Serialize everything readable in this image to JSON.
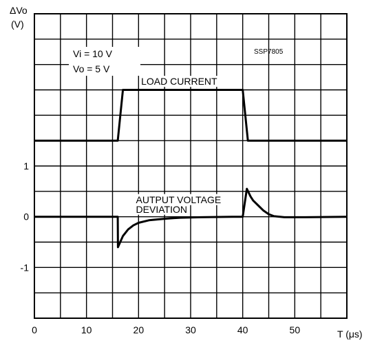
{
  "chart_data": {
    "type": "line",
    "ylabel_lines": [
      "ΔVo",
      "(V)"
    ],
    "xlabel": "T (μs)",
    "part_number": "SSP7805",
    "conditions": [
      "Vi = 10 V",
      "Vo = 5 V"
    ],
    "xlim": [
      0,
      60
    ],
    "ylim": [
      -2,
      4
    ],
    "grid": true,
    "x_ticks": [
      {
        "value": 0,
        "label": "0"
      },
      {
        "value": 10,
        "label": "10"
      },
      {
        "value": 20,
        "label": "20"
      },
      {
        "value": 30,
        "label": "30"
      },
      {
        "value": 40,
        "label": "40"
      },
      {
        "value": 50,
        "label": "50"
      }
    ],
    "y_ticks": [
      {
        "value": 1,
        "label": "1"
      },
      {
        "value": 0,
        "label": "0"
      },
      {
        "value": -1,
        "label": "-1"
      }
    ],
    "series": [
      {
        "name": "LOAD CURRENT",
        "points": [
          [
            0,
            1.5
          ],
          [
            16,
            1.5
          ],
          [
            17,
            2.5
          ],
          [
            40,
            2.5
          ],
          [
            41,
            1.5
          ],
          [
            60,
            1.5
          ]
        ]
      },
      {
        "name": "AUTPUT VOLTAGE DEVIATION",
        "points": [
          [
            0,
            0
          ],
          [
            16,
            0
          ],
          [
            16.05,
            -0.6
          ],
          [
            17,
            -0.38
          ],
          [
            18,
            -0.25
          ],
          [
            19,
            -0.17
          ],
          [
            20,
            -0.12
          ],
          [
            22,
            -0.07
          ],
          [
            25,
            -0.04
          ],
          [
            28,
            -0.02
          ],
          [
            32,
            -0.01
          ],
          [
            38,
            0
          ],
          [
            40,
            0
          ],
          [
            40.8,
            0.55
          ],
          [
            41.5,
            0.4
          ],
          [
            42,
            0.32
          ],
          [
            43,
            0.22
          ],
          [
            44,
            0.12
          ],
          [
            45,
            0.05
          ],
          [
            46,
            0.01
          ],
          [
            48,
            -0.01
          ],
          [
            52,
            -0.01
          ],
          [
            60,
            0
          ]
        ]
      }
    ],
    "annotations": [
      {
        "text": "LOAD CURRENT",
        "x": 20.5,
        "y": 2.6
      },
      {
        "text": "AUTPUT VOLTAGE",
        "x": 19.5,
        "y": 0.27
      },
      {
        "text": "DEVIATION",
        "x": 19.5,
        "y": 0.08
      }
    ]
  }
}
